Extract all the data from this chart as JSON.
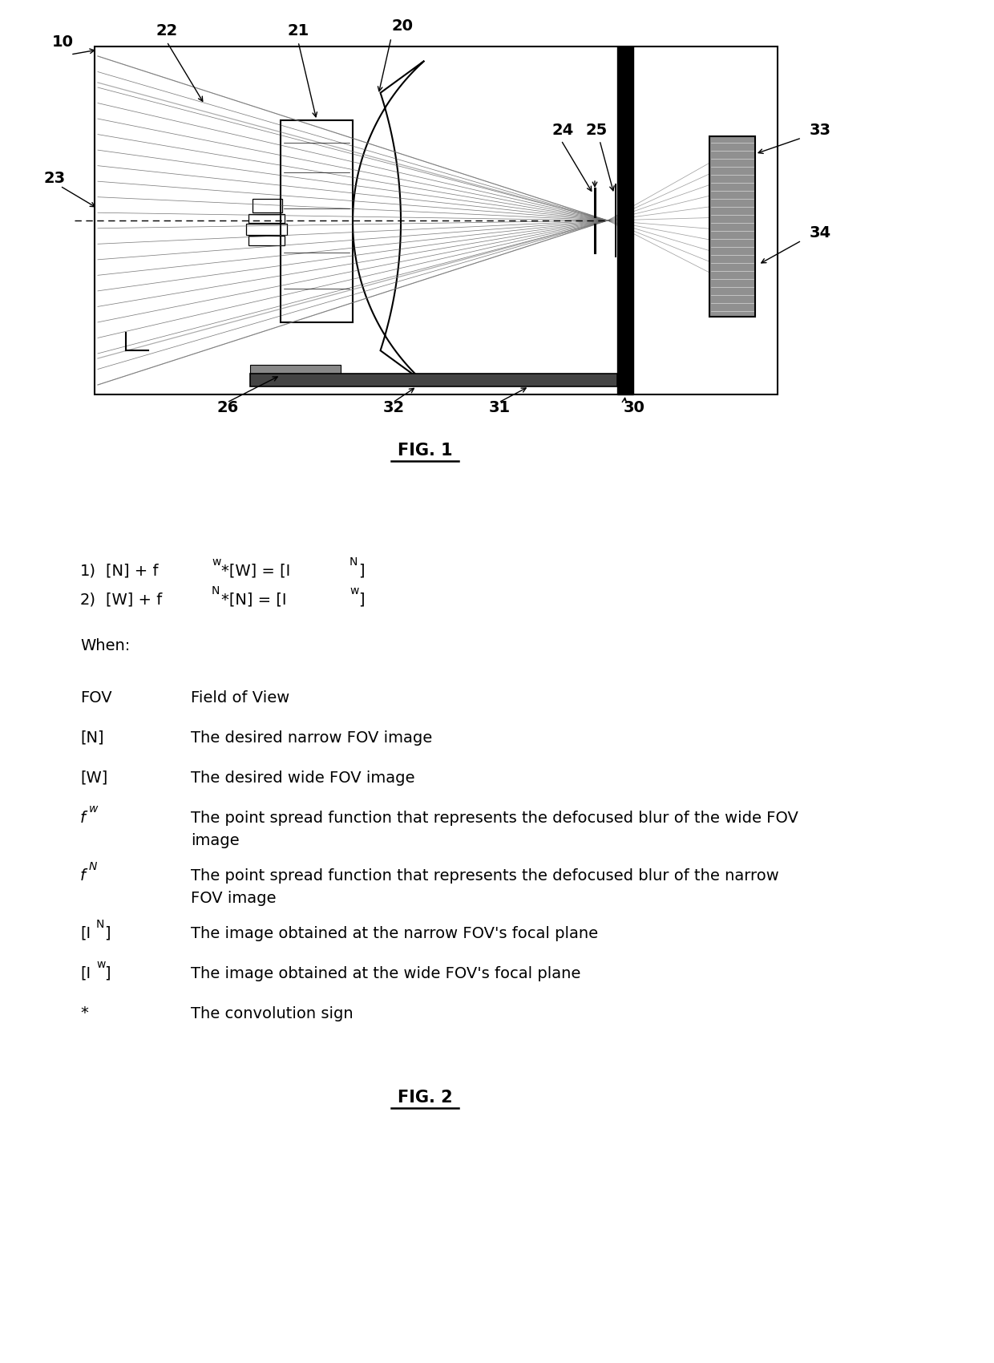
{
  "fig_width": 12.4,
  "fig_height": 17.0,
  "dpi": 100,
  "bg_color": "#ffffff",
  "fig1_title": "FIG. 1",
  "fig2_title": "FIG. 2",
  "when_label": "When:",
  "label_10": "10",
  "label_20": "20",
  "label_21": "21",
  "label_22": "22",
  "label_23": "23",
  "label_24": "24",
  "label_25": "25",
  "label_26": "26",
  "label_30": "30",
  "label_31": "31",
  "label_32": "32",
  "label_33": "33",
  "label_34": "34"
}
